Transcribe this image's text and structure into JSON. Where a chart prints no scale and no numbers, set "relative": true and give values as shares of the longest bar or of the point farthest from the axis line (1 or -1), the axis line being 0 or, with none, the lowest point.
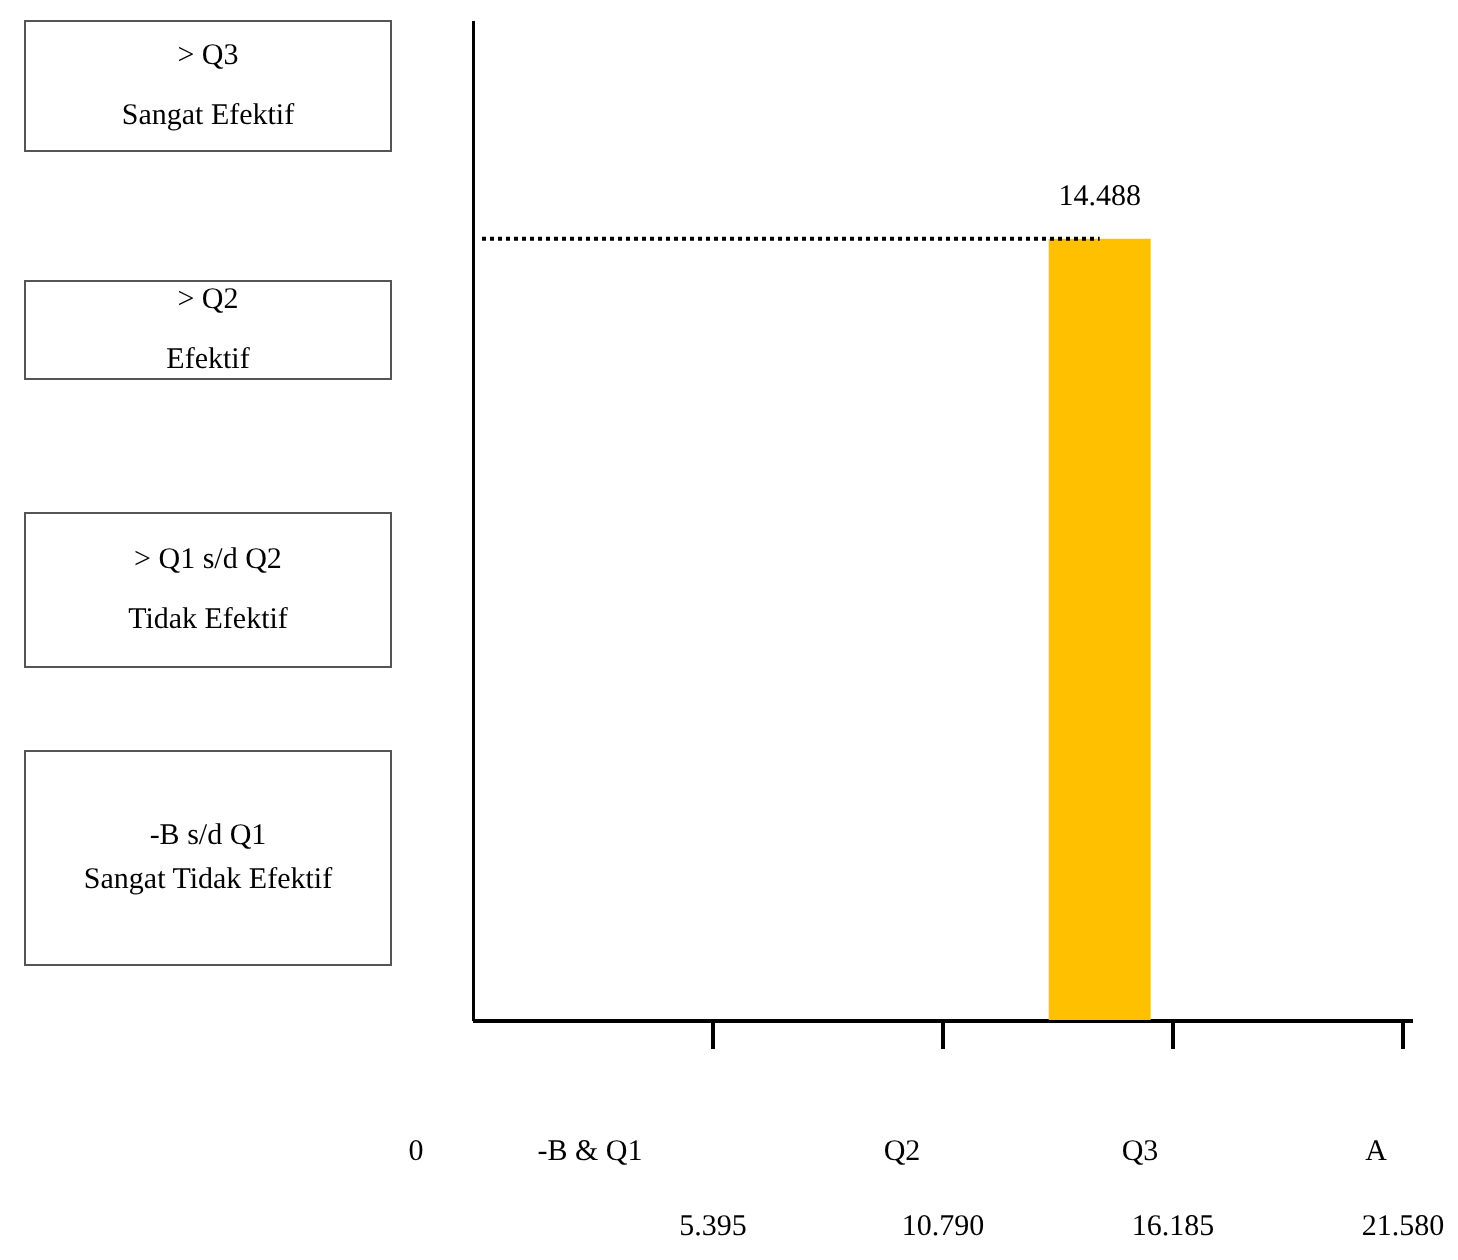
{
  "chart_data": {
    "type": "bar",
    "relative": true,
    "x": [
      14.488
    ],
    "values": [
      1
    ],
    "color": "#ffc000",
    "xlim": [
      0,
      21.58
    ],
    "xticks": [
      {
        "value": 5.395,
        "label": "5.395"
      },
      {
        "value": 10.79,
        "label": "10.790"
      },
      {
        "value": 16.185,
        "label": "16.185"
      },
      {
        "value": 21.58,
        "label": "21.580"
      }
    ],
    "ref_lines": [
      {
        "axis": "y",
        "value": 1,
        "line_style": "dotted",
        "color": "#000000"
      }
    ],
    "annotations": [
      {
        "text": "14.488",
        "x": 14.488,
        "y": 1
      },
      "> Q3\nSangat Efektif",
      "> Q2\nEfektif",
      "> Q1 s/d Q2\nTidak Efektif",
      "-B s/d Q1\nSangat Tidak Efektif",
      "0",
      "-B & Q1",
      "Q2",
      "Q3",
      "A"
    ],
    "tick_labels": "x"
  }
}
